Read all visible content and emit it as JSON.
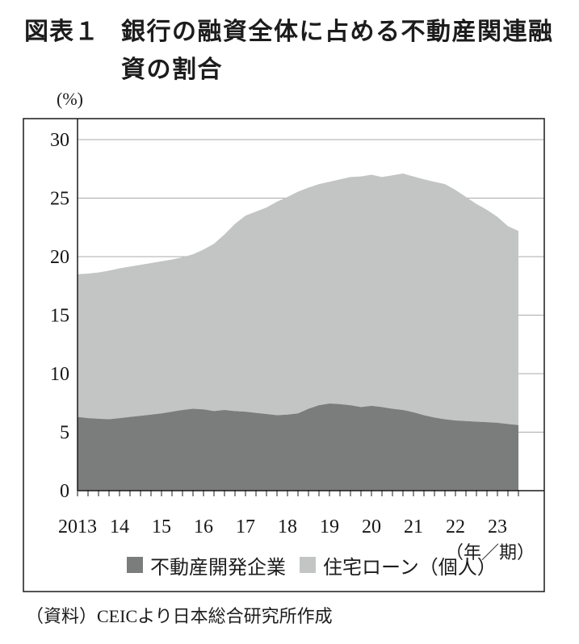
{
  "figure": {
    "label": "図表１",
    "title": "銀行の融資全体に占める不動産関連融資の割合",
    "y_axis_unit": "(%)",
    "x_axis_note": "（年／期）",
    "source": "（資料）CEICより日本総合研究所作成"
  },
  "chart_data": {
    "type": "area",
    "stacked": true,
    "unit": "%",
    "frequency": "quarterly",
    "x_start": "2013Q1",
    "x_end": "2023Q3",
    "x_tick_labels": [
      "2013",
      "14",
      "15",
      "16",
      "17",
      "18",
      "19",
      "20",
      "21",
      "22",
      "23"
    ],
    "y_ticks": [
      0,
      5,
      10,
      15,
      20,
      25,
      30
    ],
    "y_tick_labels": [
      "0",
      "5",
      "10",
      "15",
      "20",
      "25",
      "30"
    ],
    "ylim": [
      0,
      31.8
    ],
    "grid": true,
    "legend_position": "bottom",
    "colors": {
      "frame": "#1a1a1a",
      "gridline": "#ababab"
    },
    "series": [
      {
        "name": "不動産開発企業",
        "color": "#7a7d7c",
        "values": [
          6.3,
          6.2,
          6.15,
          6.1,
          6.2,
          6.3,
          6.4,
          6.5,
          6.6,
          6.75,
          6.9,
          7.0,
          6.95,
          6.8,
          6.9,
          6.8,
          6.75,
          6.65,
          6.55,
          6.45,
          6.5,
          6.6,
          7.0,
          7.3,
          7.45,
          7.4,
          7.3,
          7.15,
          7.25,
          7.15,
          7.0,
          6.9,
          6.7,
          6.45,
          6.25,
          6.1,
          6.0,
          5.95,
          5.9,
          5.85,
          5.8,
          5.7,
          5.6
        ]
      },
      {
        "name": "住宅ローン（個人）",
        "color": "#c2c5c4",
        "values": [
          12.2,
          12.35,
          12.5,
          12.7,
          12.8,
          12.85,
          12.9,
          12.95,
          13.0,
          13.0,
          13.05,
          13.2,
          13.65,
          14.3,
          15.0,
          16.0,
          16.75,
          17.2,
          17.65,
          18.25,
          18.6,
          18.95,
          18.9,
          18.9,
          18.95,
          19.2,
          19.5,
          19.7,
          19.75,
          19.65,
          19.95,
          20.2,
          20.15,
          20.15,
          20.15,
          20.1,
          19.7,
          19.15,
          18.6,
          18.15,
          17.6,
          16.9,
          16.6
        ]
      }
    ]
  }
}
